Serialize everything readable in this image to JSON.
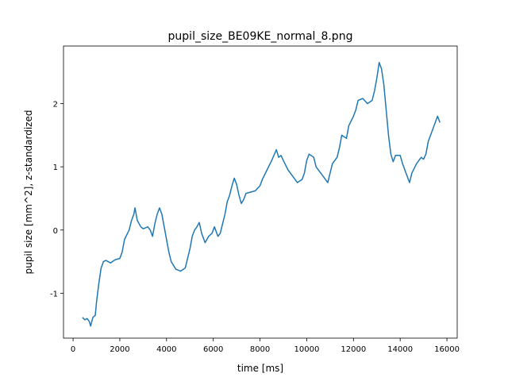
{
  "chart_data": {
    "type": "line",
    "title": "pupil_size_BE09KE_normal_8.png",
    "x_label": "time [ms]",
    "y_label": "pupil size [mm^2], z-standardized",
    "color": "#1f77b4",
    "x": [
      400,
      500,
      600,
      700,
      750,
      850,
      950,
      1000,
      1100,
      1200,
      1300,
      1400,
      1600,
      1800,
      2000,
      2100,
      2200,
      2400,
      2500,
      2600,
      2650,
      2750,
      2900,
      3000,
      3200,
      3300,
      3400,
      3500,
      3600,
      3700,
      3800,
      3900,
      4000,
      4100,
      4200,
      4400,
      4600,
      4800,
      4900,
      5000,
      5100,
      5200,
      5300,
      5400,
      5500,
      5650,
      5800,
      5950,
      6050,
      6200,
      6300,
      6400,
      6500,
      6600,
      6700,
      6800,
      6900,
      7000,
      7100,
      7200,
      7300,
      7400,
      7600,
      7800,
      8000,
      8100,
      8300,
      8500,
      8700,
      8800,
      8900,
      9000,
      9200,
      9400,
      9600,
      9800,
      9900,
      10000,
      10100,
      10300,
      10400,
      10600,
      10800,
      10900,
      11000,
      11100,
      11300,
      11400,
      11500,
      11700,
      11800,
      12000,
      12100,
      12200,
      12400,
      12600,
      12800,
      12900,
      13000,
      13100,
      13200,
      13300,
      13400,
      13500,
      13600,
      13700,
      13800,
      14000,
      14100,
      14300,
      14400,
      14500,
      14700,
      14900,
      15000,
      15100,
      15200,
      15400,
      15500,
      15600,
      15700
    ],
    "values": [
      -1.38,
      -1.42,
      -1.4,
      -1.45,
      -1.52,
      -1.38,
      -1.35,
      -1.15,
      -0.85,
      -0.6,
      -0.5,
      -0.48,
      -0.52,
      -0.47,
      -0.45,
      -0.35,
      -0.15,
      0.0,
      0.15,
      0.25,
      0.35,
      0.15,
      0.05,
      0.02,
      0.05,
      0.0,
      -0.1,
      0.1,
      0.25,
      0.35,
      0.25,
      0.05,
      -0.15,
      -0.35,
      -0.5,
      -0.62,
      -0.65,
      -0.6,
      -0.45,
      -0.3,
      -0.1,
      0.0,
      0.05,
      0.12,
      -0.05,
      -0.2,
      -0.1,
      -0.05,
      0.05,
      -0.1,
      -0.05,
      0.1,
      0.25,
      0.45,
      0.55,
      0.7,
      0.82,
      0.72,
      0.55,
      0.42,
      0.48,
      0.58,
      0.6,
      0.62,
      0.7,
      0.8,
      0.95,
      1.1,
      1.27,
      1.15,
      1.18,
      1.1,
      0.95,
      0.85,
      0.75,
      0.8,
      0.9,
      1.1,
      1.2,
      1.15,
      1.0,
      0.9,
      0.8,
      0.75,
      0.9,
      1.05,
      1.15,
      1.3,
      1.5,
      1.45,
      1.65,
      1.8,
      1.9,
      2.05,
      2.08,
      2.0,
      2.05,
      2.2,
      2.4,
      2.65,
      2.55,
      2.3,
      1.9,
      1.5,
      1.2,
      1.08,
      1.18,
      1.18,
      1.05,
      0.85,
      0.75,
      0.9,
      1.05,
      1.15,
      1.12,
      1.2,
      1.4,
      1.6,
      1.7,
      1.8,
      1.7
    ],
    "xlim": [
      -410,
      16440
    ],
    "xticks": [
      0,
      2000,
      4000,
      6000,
      8000,
      10000,
      12000,
      14000,
      16000
    ],
    "ylim": [
      -1.71,
      2.91
    ],
    "yticks": [
      -1,
      0,
      1,
      2
    ]
  }
}
